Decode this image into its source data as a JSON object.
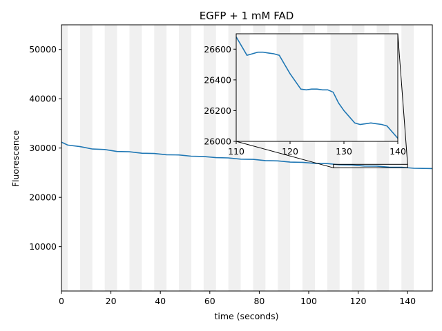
{
  "chart_data": {
    "type": "line",
    "title": "EGFP + 1 mM FAD",
    "xlabel": "time (seconds)",
    "ylabel": "Fluorescence",
    "xlim": [
      0,
      150
    ],
    "ylim": [
      1000,
      55000
    ],
    "x_ticks": [
      0,
      20,
      40,
      60,
      80,
      100,
      120,
      140
    ],
    "y_ticks": [
      10000,
      20000,
      30000,
      40000,
      50000
    ],
    "grid": false,
    "line_color": "#1f77b4",
    "shade_color": "#f0f0f0",
    "shaded_intervals": [
      [
        0,
        2.5
      ],
      [
        7.5,
        12.5
      ],
      [
        17.5,
        22.5
      ],
      [
        27.5,
        32.5
      ],
      [
        37.5,
        42.5
      ],
      [
        47.5,
        52.5
      ],
      [
        57.5,
        62.5
      ],
      [
        67.5,
        72.5
      ],
      [
        77.5,
        82.5
      ],
      [
        87.5,
        92.5
      ],
      [
        97.5,
        102.5
      ],
      [
        107.5,
        112.5
      ],
      [
        117.5,
        122.5
      ],
      [
        127.5,
        132.5
      ],
      [
        137.5,
        142.5
      ]
    ],
    "series": [
      {
        "x": [
          0,
          2.5,
          7.5,
          12.5,
          17.5,
          22.5,
          27.5,
          32.5,
          37.5,
          42.5,
          47.5,
          52.5,
          57.5,
          62.5,
          67.5,
          72.5,
          77.5,
          82.5,
          87.5,
          92.5,
          97.5,
          102.5,
          107.5,
          112.5,
          117.5,
          122.5,
          127.5,
          132.5,
          137.5,
          142.5,
          150
        ],
        "y": [
          31200,
          30600,
          30300,
          29800,
          29700,
          29300,
          29250,
          28950,
          28900,
          28650,
          28600,
          28350,
          28300,
          28050,
          28000,
          27750,
          27700,
          27450,
          27400,
          27150,
          27100,
          26900,
          26850,
          26600,
          26580,
          26350,
          26340,
          26120,
          26110,
          25900,
          25850
        ]
      }
    ],
    "inset": {
      "xlim": [
        110,
        140
      ],
      "ylim": [
        26000,
        26700
      ],
      "x_ticks": [
        110,
        120,
        130,
        140
      ],
      "y_ticks": [
        26000,
        26200,
        26400,
        26600
      ],
      "x": [
        110,
        111,
        112,
        113,
        114,
        115,
        116,
        117,
        118,
        119,
        120,
        121,
        122,
        123,
        124,
        125,
        126,
        127,
        128,
        129,
        130,
        131,
        132,
        133,
        134,
        135,
        136,
        137,
        138,
        139,
        140
      ],
      "y": [
        26680,
        26620,
        26560,
        26570,
        26580,
        26580,
        26575,
        26570,
        26560,
        26500,
        26440,
        26390,
        26340,
        26335,
        26340,
        26340,
        26335,
        26335,
        26320,
        26250,
        26200,
        26160,
        26120,
        26110,
        26115,
        26120,
        26115,
        26110,
        26100,
        26060,
        26020
      ]
    }
  }
}
